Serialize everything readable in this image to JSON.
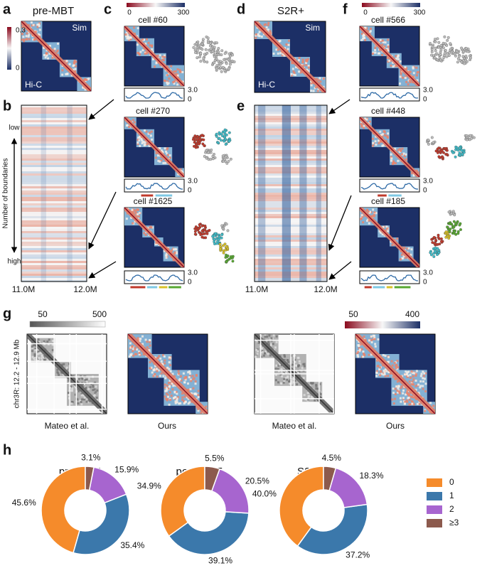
{
  "panel_labels": [
    "a",
    "b",
    "c",
    "d",
    "e",
    "f",
    "g",
    "h"
  ],
  "left": {
    "title": "pre-MBT",
    "sim": "Sim",
    "hic": "Hi-C",
    "colorbar_a": [
      "0.3",
      "0"
    ],
    "y_label": "Number of boundaries",
    "low": "low",
    "high": "high",
    "x_start": "11.0M",
    "x_end": "12.0M",
    "colorbar_c": [
      "0",
      "300"
    ],
    "cells": [
      {
        "label": "cell #60",
        "track_max": "3.0",
        "track_min": "0"
      },
      {
        "label": "cell #270",
        "track_max": "3.0",
        "track_min": "0"
      },
      {
        "label": "cell #1625",
        "track_max": "3.0",
        "track_min": "0"
      }
    ]
  },
  "right": {
    "title": "S2R+",
    "sim": "Sim",
    "hic": "Hi-C",
    "x_start": "11.0M",
    "x_end": "12.0M",
    "colorbar_c": [
      "0",
      "300"
    ],
    "cells": [
      {
        "label": "cell #566",
        "track_max": "3.0",
        "track_min": "0"
      },
      {
        "label": "cell #448",
        "track_max": "3.0",
        "track_min": "0"
      },
      {
        "label": "cell #185",
        "track_max": "3.0",
        "track_min": "0"
      }
    ]
  },
  "g": {
    "colorbar_gray": [
      "50",
      "500"
    ],
    "colorbar_color": [
      "50",
      "400"
    ],
    "y_label": "chr3R: 12.2 - 12.9 Mb",
    "captions": [
      "Mateo et al.",
      "Ours",
      "Mateo et al.",
      "Ours"
    ]
  },
  "legend": {
    "labels": [
      "0",
      "1",
      "2",
      "≥3"
    ],
    "colors": [
      "#f58b2b",
      "#3b78ab",
      "#a765cf",
      "#8c5a4d"
    ]
  },
  "chart_data": [
    {
      "type": "pie",
      "title": "pre-MBT",
      "values": [
        45.6,
        35.4,
        15.9,
        3.1
      ],
      "value_labels": [
        "45.6%",
        "35.4%",
        "15.9%",
        "3.1%"
      ]
    },
    {
      "type": "pie",
      "title": "post-MBT",
      "values": [
        34.9,
        39.1,
        20.5,
        5.5
      ],
      "value_labels": [
        "34.9%",
        "39.1%",
        "20.5%",
        "5.5%"
      ]
    },
    {
      "type": "pie",
      "title": "S2R+",
      "values": [
        40,
        37.2,
        18.3,
        4.5
      ],
      "value_labels": [
        "40.0%",
        "37.2%",
        "18.3%",
        "4.5%"
      ]
    }
  ]
}
